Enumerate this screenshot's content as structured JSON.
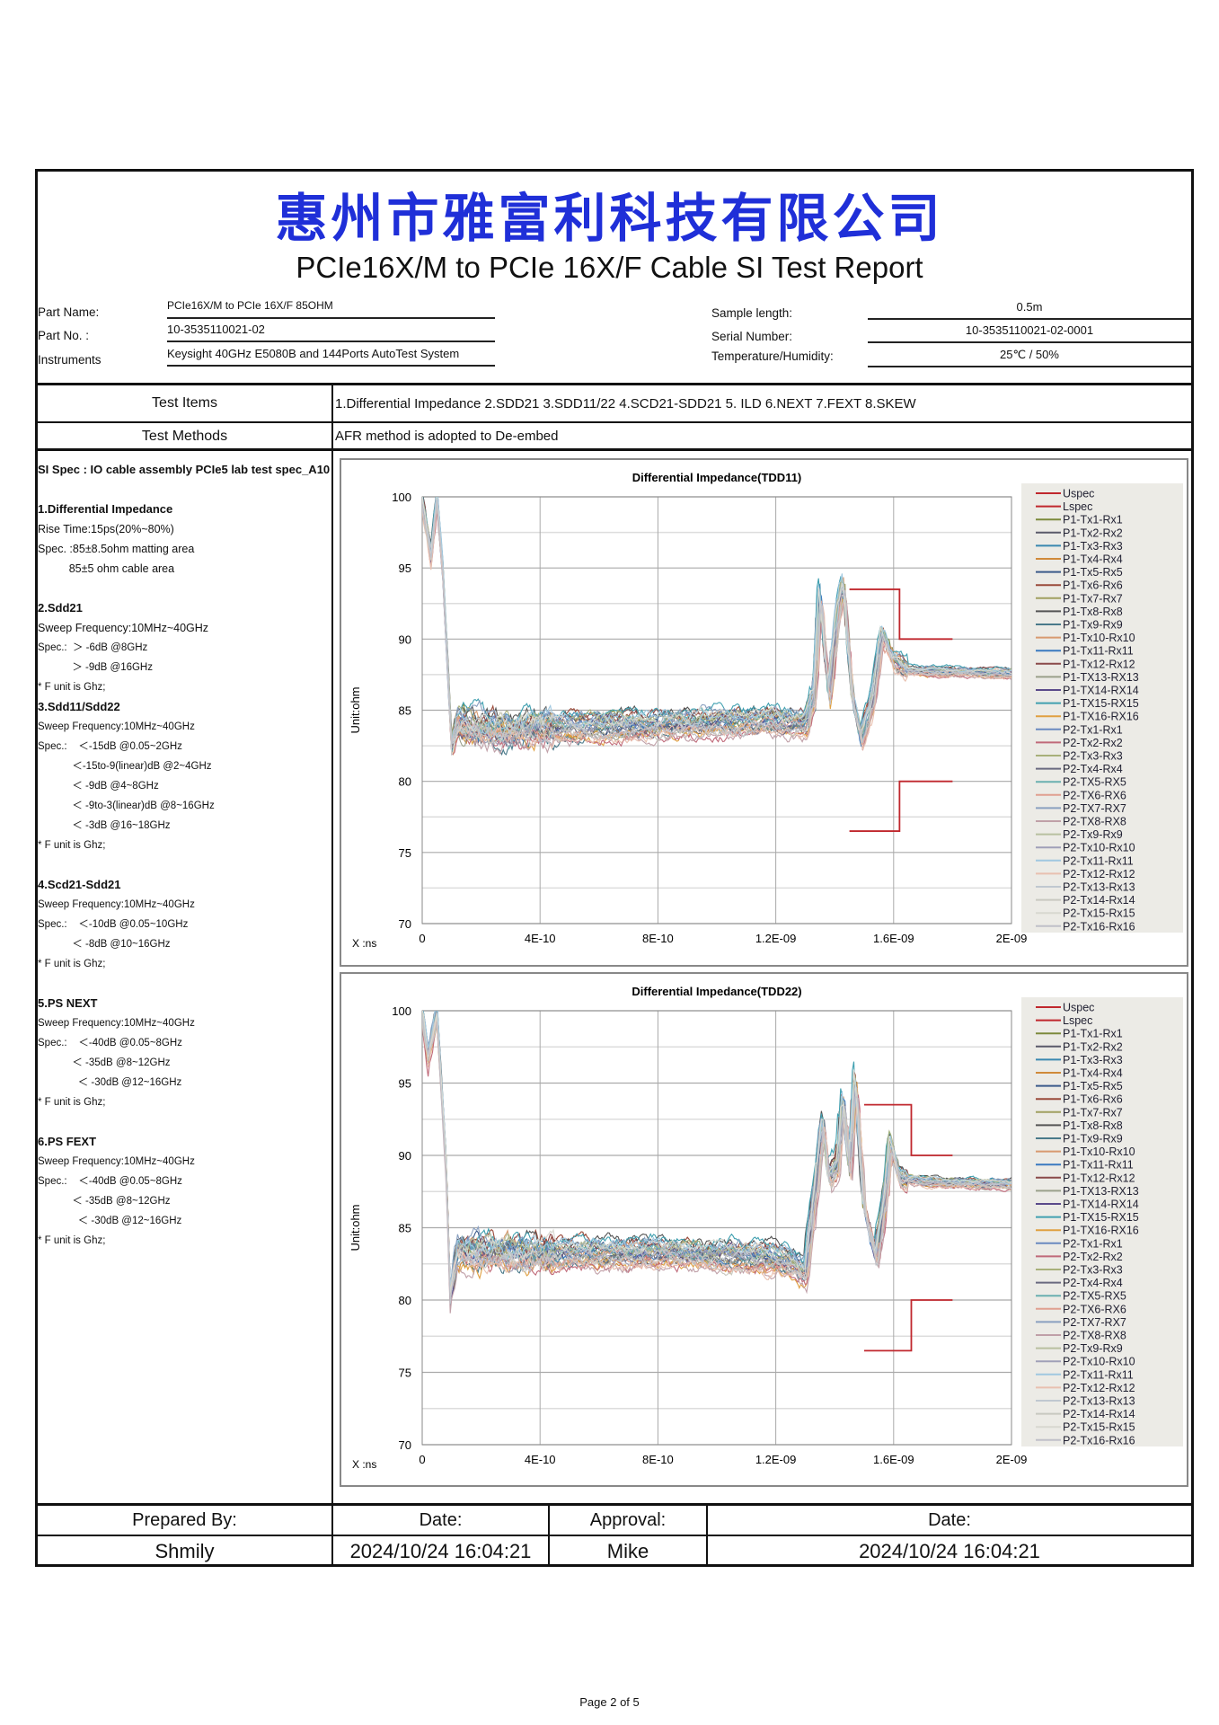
{
  "company": "惠州市雅富利科技有限公司",
  "report_title": "PCIe16X/M to PCIe 16X/F Cable SI Test Report",
  "info": {
    "part_name_label": "Part Name:",
    "part_name": "PCIe16X/M to PCIe 16X/F 85OHM",
    "part_no_label": "Part No. :",
    "part_no": "10-3535110021-02",
    "instruments_label": "Instruments",
    "instruments": "Keysight 40GHz E5080B and 144Ports AutoTest System",
    "sample_length_label": "Sample length:",
    "sample_length": "0.5m",
    "serial_label": "Serial Number:",
    "serial": "10-3535110021-02-0001",
    "temp_label": "Temperature/Humidity:",
    "temp": "25℃ / 50%"
  },
  "test_items_label": "Test Items",
  "test_items": "1.Differential Impedance  2.SDD21   3.SDD11/22  4.SCD21-SDD21  5. ILD  6.NEXT  7.FEXT  8.SKEW",
  "test_methods_label": "Test Methods",
  "test_methods": "AFR method is adopted to De-embed",
  "spec_lines": [
    {
      "t": "SI Spec : IO cable assembly PCIe5 lab test spec_A10",
      "c": "b"
    },
    {
      "t": "",
      "c": ""
    },
    {
      "t": "1.Differential Impedance",
      "c": "b"
    },
    {
      "t": "Rise Time:15ps(20%~80%)",
      "c": ""
    },
    {
      "t": "Spec. :85±8.5ohm matting area",
      "c": ""
    },
    {
      "t": "          85±5 ohm cable area",
      "c": ""
    },
    {
      "t": "",
      "c": ""
    },
    {
      "t": "2.Sdd21",
      "c": "b"
    },
    {
      "t": "Sweep Frequency:10MHz~40GHz",
      "c": ""
    },
    {
      "t": "Spec.:  ＞ -6dB @8GHz",
      "c": "s"
    },
    {
      "t": "            ＞ -9dB @16GHz",
      "c": "s"
    },
    {
      "t": "* F unit is Ghz;",
      "c": "s"
    },
    {
      "t": "3.Sdd11/Sdd22",
      "c": "b"
    },
    {
      "t": "Sweep Frequency:10MHz~40GHz",
      "c": "s"
    },
    {
      "t": "Spec.:    ＜-15dB @0.05~2GHz",
      "c": "s"
    },
    {
      "t": "            ＜-15to-9(linear)dB @2~4GHz",
      "c": "s"
    },
    {
      "t": "            ＜ -9dB @4~8GHz",
      "c": "s"
    },
    {
      "t": "            ＜ -9to-3(linear)dB @8~16GHz",
      "c": "s"
    },
    {
      "t": "            ＜ -3dB @16~18GHz",
      "c": "s"
    },
    {
      "t": "* F unit is Ghz;",
      "c": "s"
    },
    {
      "t": "",
      "c": ""
    },
    {
      "t": "4.Scd21-Sdd21",
      "c": "b"
    },
    {
      "t": "Sweep Frequency:10MHz~40GHz",
      "c": "s"
    },
    {
      "t": "Spec.:    ＜-10dB @0.05~10GHz",
      "c": "s"
    },
    {
      "t": "            ＜ -8dB @10~16GHz",
      "c": "s"
    },
    {
      "t": "* F unit is Ghz;",
      "c": "s"
    },
    {
      "t": "",
      "c": ""
    },
    {
      "t": "5.PS NEXT",
      "c": "b"
    },
    {
      "t": "Sweep Frequency:10MHz~40GHz",
      "c": "s"
    },
    {
      "t": "Spec.:    ＜-40dB @0.05~8GHz",
      "c": "s"
    },
    {
      "t": "            ＜ -35dB @8~12GHz",
      "c": "s"
    },
    {
      "t": "              ＜ -30dB @12~16GHz",
      "c": "s"
    },
    {
      "t": "* F unit is Ghz;",
      "c": "s"
    },
    {
      "t": "",
      "c": ""
    },
    {
      "t": "6.PS FEXT",
      "c": "b"
    },
    {
      "t": "Sweep Frequency:10MHz~40GHz",
      "c": "s"
    },
    {
      "t": "Spec.:    ＜-40dB @0.05~8GHz",
      "c": "s"
    },
    {
      "t": "            ＜ -35dB @8~12GHz",
      "c": "s"
    },
    {
      "t": "              ＜ -30dB @12~16GHz",
      "c": "s"
    },
    {
      "t": "* F unit is Ghz;",
      "c": "s"
    }
  ],
  "chart_data": [
    {
      "type": "line",
      "title": "Differential Impedance(TDD11)",
      "ylabel": "Unit:ohm",
      "xlabel": "X :ns",
      "xlim": [
        0,
        2e-09
      ],
      "ylim": [
        70,
        100
      ],
      "grid": true,
      "legend": "right",
      "xticks": [
        "0",
        "4E-10",
        "8E-10",
        "1.2E-09",
        "1.6E-09",
        "2E-09"
      ],
      "yticks": [
        "70",
        "75",
        "80",
        "85",
        "90",
        "95",
        "100"
      ],
      "uspec": {
        "x": [
          1.45e-09,
          1.62e-09,
          1.62e-09,
          1.8e-09
        ],
        "y": [
          93.5,
          93.5,
          90,
          90
        ]
      },
      "lspec": {
        "x": [
          1.45e-09,
          1.62e-09,
          1.62e-09,
          1.8e-09
        ],
        "y": [
          76.5,
          76.5,
          80,
          80
        ]
      },
      "typical_x_ns": [
        0,
        0.03,
        0.05,
        0.07,
        0.1,
        0.12,
        0.3,
        0.4,
        0.8,
        1.2,
        1.3,
        1.33,
        1.35,
        1.38,
        1.41,
        1.43,
        1.46,
        1.49,
        1.53,
        1.56,
        1.6,
        1.65,
        2.0
      ],
      "typical_y": [
        100,
        96,
        100,
        95,
        82.5,
        84,
        83.5,
        83.8,
        84,
        84.3,
        84,
        86,
        93.5,
        86,
        92,
        94,
        86,
        83,
        86,
        90.5,
        88.5,
        87.8,
        87.6
      ]
    },
    {
      "type": "line",
      "title": "Differential Impedance(TDD22)",
      "ylabel": "Unit:ohm",
      "xlabel": "X :ns",
      "xlim": [
        0,
        2e-09
      ],
      "ylim": [
        70,
        100
      ],
      "grid": true,
      "legend": "right",
      "xticks": [
        "0",
        "4E-10",
        "8E-10",
        "1.2E-09",
        "1.6E-09",
        "2E-09"
      ],
      "yticks": [
        "70",
        "75",
        "80",
        "85",
        "90",
        "95",
        "100"
      ],
      "uspec": {
        "x": [
          1.5e-09,
          1.66e-09,
          1.66e-09,
          1.8e-09
        ],
        "y": [
          93.5,
          93.5,
          90,
          90
        ]
      },
      "lspec": {
        "x": [
          1.5e-09,
          1.66e-09,
          1.66e-09,
          1.8e-09
        ],
        "y": [
          76.5,
          76.5,
          80,
          80
        ]
      },
      "typical_x_ns": [
        0,
        0.02,
        0.05,
        0.08,
        0.095,
        0.12,
        0.4,
        0.8,
        1.2,
        1.27,
        1.3,
        1.33,
        1.36,
        1.38,
        1.41,
        1.43,
        1.45,
        1.47,
        1.5,
        1.54,
        1.57,
        1.59,
        1.62,
        1.7,
        2.0
      ],
      "typical_y": [
        100,
        97,
        100,
        90,
        80.5,
        83.5,
        83.2,
        83.3,
        83,
        82.5,
        82,
        87,
        92.5,
        88.5,
        89.5,
        94,
        89,
        95.5,
        86.5,
        83,
        87,
        91,
        88.5,
        88.2,
        88
      ]
    }
  ],
  "series": [
    {
      "name": "Uspec",
      "color": "#c0272d",
      "offset": 0
    },
    {
      "name": "Lspec",
      "color": "#c0272d",
      "offset": 0
    },
    {
      "name": "P1-Tx1-Rx1",
      "color": "#7c8a3c",
      "offset": 0.2
    },
    {
      "name": "P1-Tx2-Rx2",
      "color": "#5a5a6a",
      "offset": -0.3
    },
    {
      "name": "P1-Tx3-Rx3",
      "color": "#3a88b0",
      "offset": 0.4
    },
    {
      "name": "P1-Tx4-Rx4",
      "color": "#d08a3a",
      "offset": -0.5
    },
    {
      "name": "P1-Tx5-Rx5",
      "color": "#3b5a8a",
      "offset": 0.1
    },
    {
      "name": "P1-Tx6-Rx6",
      "color": "#9a4a3a",
      "offset": 0.6
    },
    {
      "name": "P1-Tx7-Rx7",
      "color": "#a0a060",
      "offset": -0.2
    },
    {
      "name": "P1-Tx8-Rx8",
      "color": "#555555",
      "offset": 0.7
    },
    {
      "name": "P1-Tx9-Rx9",
      "color": "#4a7a8a",
      "offset": -0.6
    },
    {
      "name": "P1-Tx10-Rx10",
      "color": "#d89a70",
      "offset": 0.3
    },
    {
      "name": "P1-Tx11-Rx11",
      "color": "#3a7ac0",
      "offset": -0.1
    },
    {
      "name": "P1-Tx12-Rx12",
      "color": "#8a4a4a",
      "offset": 0.5
    },
    {
      "name": "P1-TX13-RX13",
      "color": "#9aa08a",
      "offset": -0.4
    },
    {
      "name": "P1-TX14-RX14",
      "color": "#5a4a8a",
      "offset": 0.0
    },
    {
      "name": "P1-TX15-RX15",
      "color": "#40a0b0",
      "offset": 0.8
    },
    {
      "name": "P1-TX16-RX16",
      "color": "#e0a040",
      "offset": -0.7
    },
    {
      "name": "P2-Tx1-Rx1",
      "color": "#6a8ac0",
      "offset": 0.2
    },
    {
      "name": "P2-Tx2-Rx2",
      "color": "#c06a7a",
      "offset": -0.9
    },
    {
      "name": "P2-Tx3-Rx3",
      "color": "#a8b07a",
      "offset": 0.4
    },
    {
      "name": "P2-Tx4-Rx4",
      "color": "#6a6a80",
      "offset": -0.3
    },
    {
      "name": "P2-TX5-RX5",
      "color": "#6ab0b0",
      "offset": 0.1
    },
    {
      "name": "P2-TX6-RX6",
      "color": "#e0a090",
      "offset": -0.5
    },
    {
      "name": "P2-TX7-RX7",
      "color": "#8aa0c0",
      "offset": 0.6
    },
    {
      "name": "P2-TX8-RX8",
      "color": "#c0a0a8",
      "offset": -1.0
    },
    {
      "name": "P2-Tx9-Rx9",
      "color": "#b8c0a0",
      "offset": 0.3
    },
    {
      "name": "P2-Tx10-Rx10",
      "color": "#a0a0b8",
      "offset": -0.2
    },
    {
      "name": "P2-Tx11-Rx11",
      "color": "#a0c8e0",
      "offset": 0.5
    },
    {
      "name": "P2-Tx12-Rx12",
      "color": "#e8c0b0",
      "offset": -0.8
    },
    {
      "name": "P2-Tx13-Rx13",
      "color": "#c0c8d0",
      "offset": 0.0
    },
    {
      "name": "P2-Tx14-Rx14",
      "color": "#c8c8c0",
      "offset": -0.6
    },
    {
      "name": "P2-Tx15-Rx15",
      "color": "#d8d8d0",
      "offset": 0.4
    },
    {
      "name": "P2-Tx16-Rx16",
      "color": "#c0c0c8",
      "offset": -0.4
    }
  ],
  "footer": {
    "prepared_label": "Prepared By:",
    "prepared": "Shmily",
    "date_label": "Date:",
    "date1": "2024/10/24 16:04:21",
    "approval_label": "Approval:",
    "approval": "Mike",
    "date2": "2024/10/24 16:04:21"
  },
  "page": "Page 2 of 5"
}
